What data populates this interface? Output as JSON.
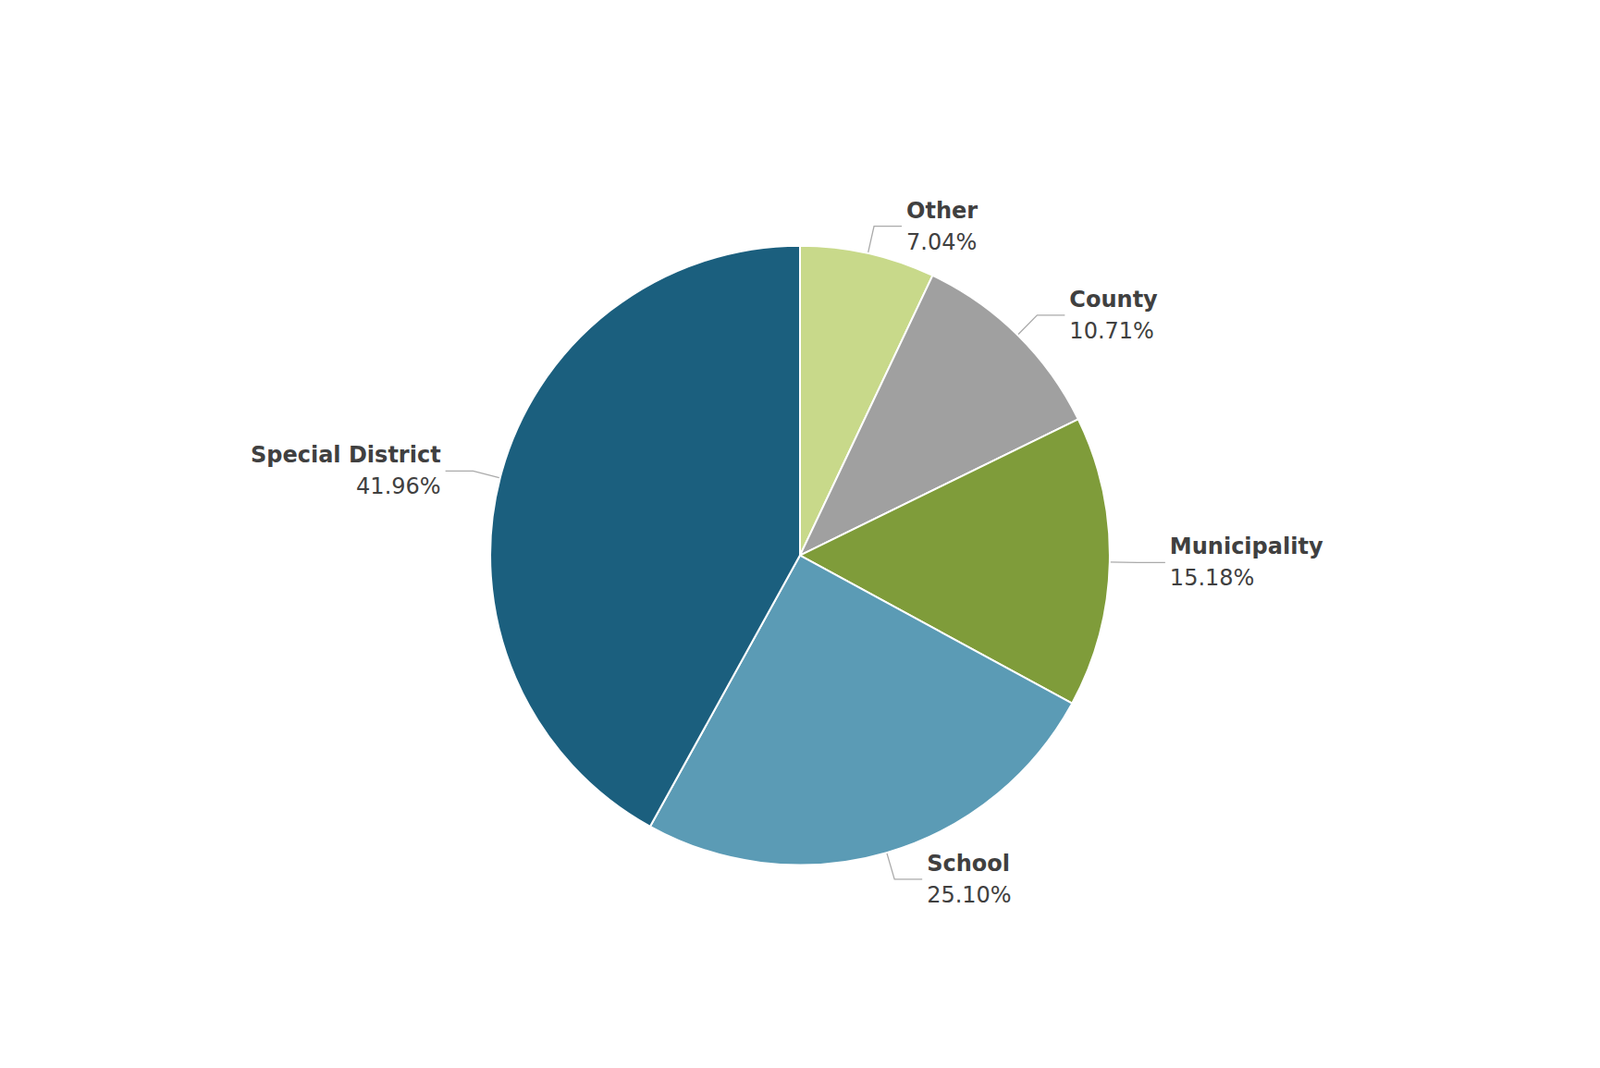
{
  "chart_data": {
    "type": "pie",
    "categories": [
      "Other",
      "County",
      "Municipality",
      "School",
      "Special District"
    ],
    "values": [
      7.04,
      10.71,
      15.18,
      25.1,
      41.96
    ],
    "value_labels": [
      "7.04%",
      "10.71%",
      "15.18%",
      "25.10%",
      "41.96%"
    ],
    "colors": [
      "#c8d98a",
      "#a0a0a0",
      "#7f9c3a",
      "#5b9bb5",
      "#1b5f7e"
    ],
    "data_labels": true
  }
}
